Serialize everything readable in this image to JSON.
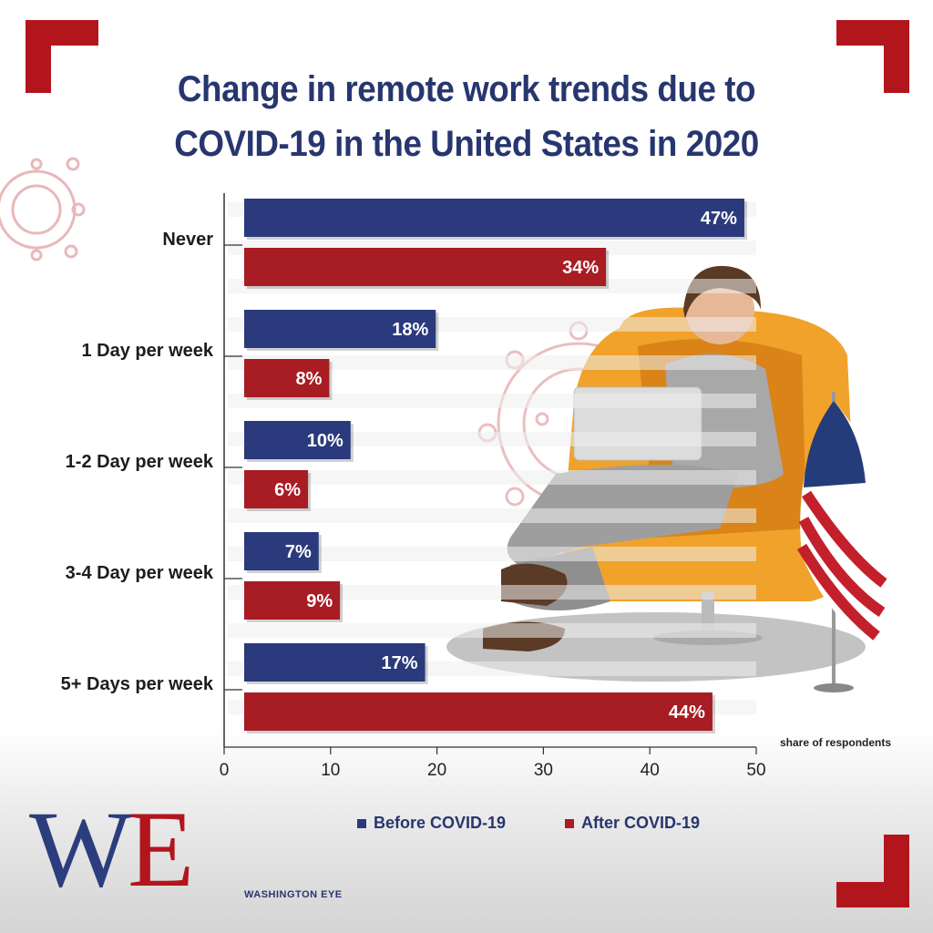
{
  "title_line1": "Change in remote work trends due to",
  "title_line2": "COVID-19 in the United States in 2020",
  "colors": {
    "before": "#2a3a7c",
    "after": "#a81c24",
    "title": "#27366f",
    "accent": "#b3151d"
  },
  "chart_data": {
    "type": "bar",
    "orientation": "horizontal",
    "title": "Change in remote work trends due to COVID-19 in the United States in 2020",
    "categories": [
      "Never",
      "1 Day per week",
      "1-2 Day per week",
      "3-4 Day per week",
      "5+ Days per week"
    ],
    "series": [
      {
        "name": "Before COVID-19",
        "values": [
          47,
          18,
          10,
          7,
          17
        ],
        "labels": [
          "47%",
          "18%",
          "10%",
          "7%",
          "17%"
        ]
      },
      {
        "name": "After COVID-19",
        "values": [
          34,
          8,
          6,
          9,
          44
        ],
        "labels": [
          "34%",
          "8%",
          "6%",
          "9%",
          "44%"
        ]
      }
    ],
    "xlabel": "share of respondents",
    "xlim": [
      0,
      50
    ],
    "xticks": [
      "0",
      "10",
      "20",
      "30",
      "40",
      "50"
    ],
    "legend_position": "bottom",
    "grid": false
  },
  "logo": {
    "letters_w": "W",
    "letters_e": "E",
    "name": "WASHINGTON EYE"
  }
}
